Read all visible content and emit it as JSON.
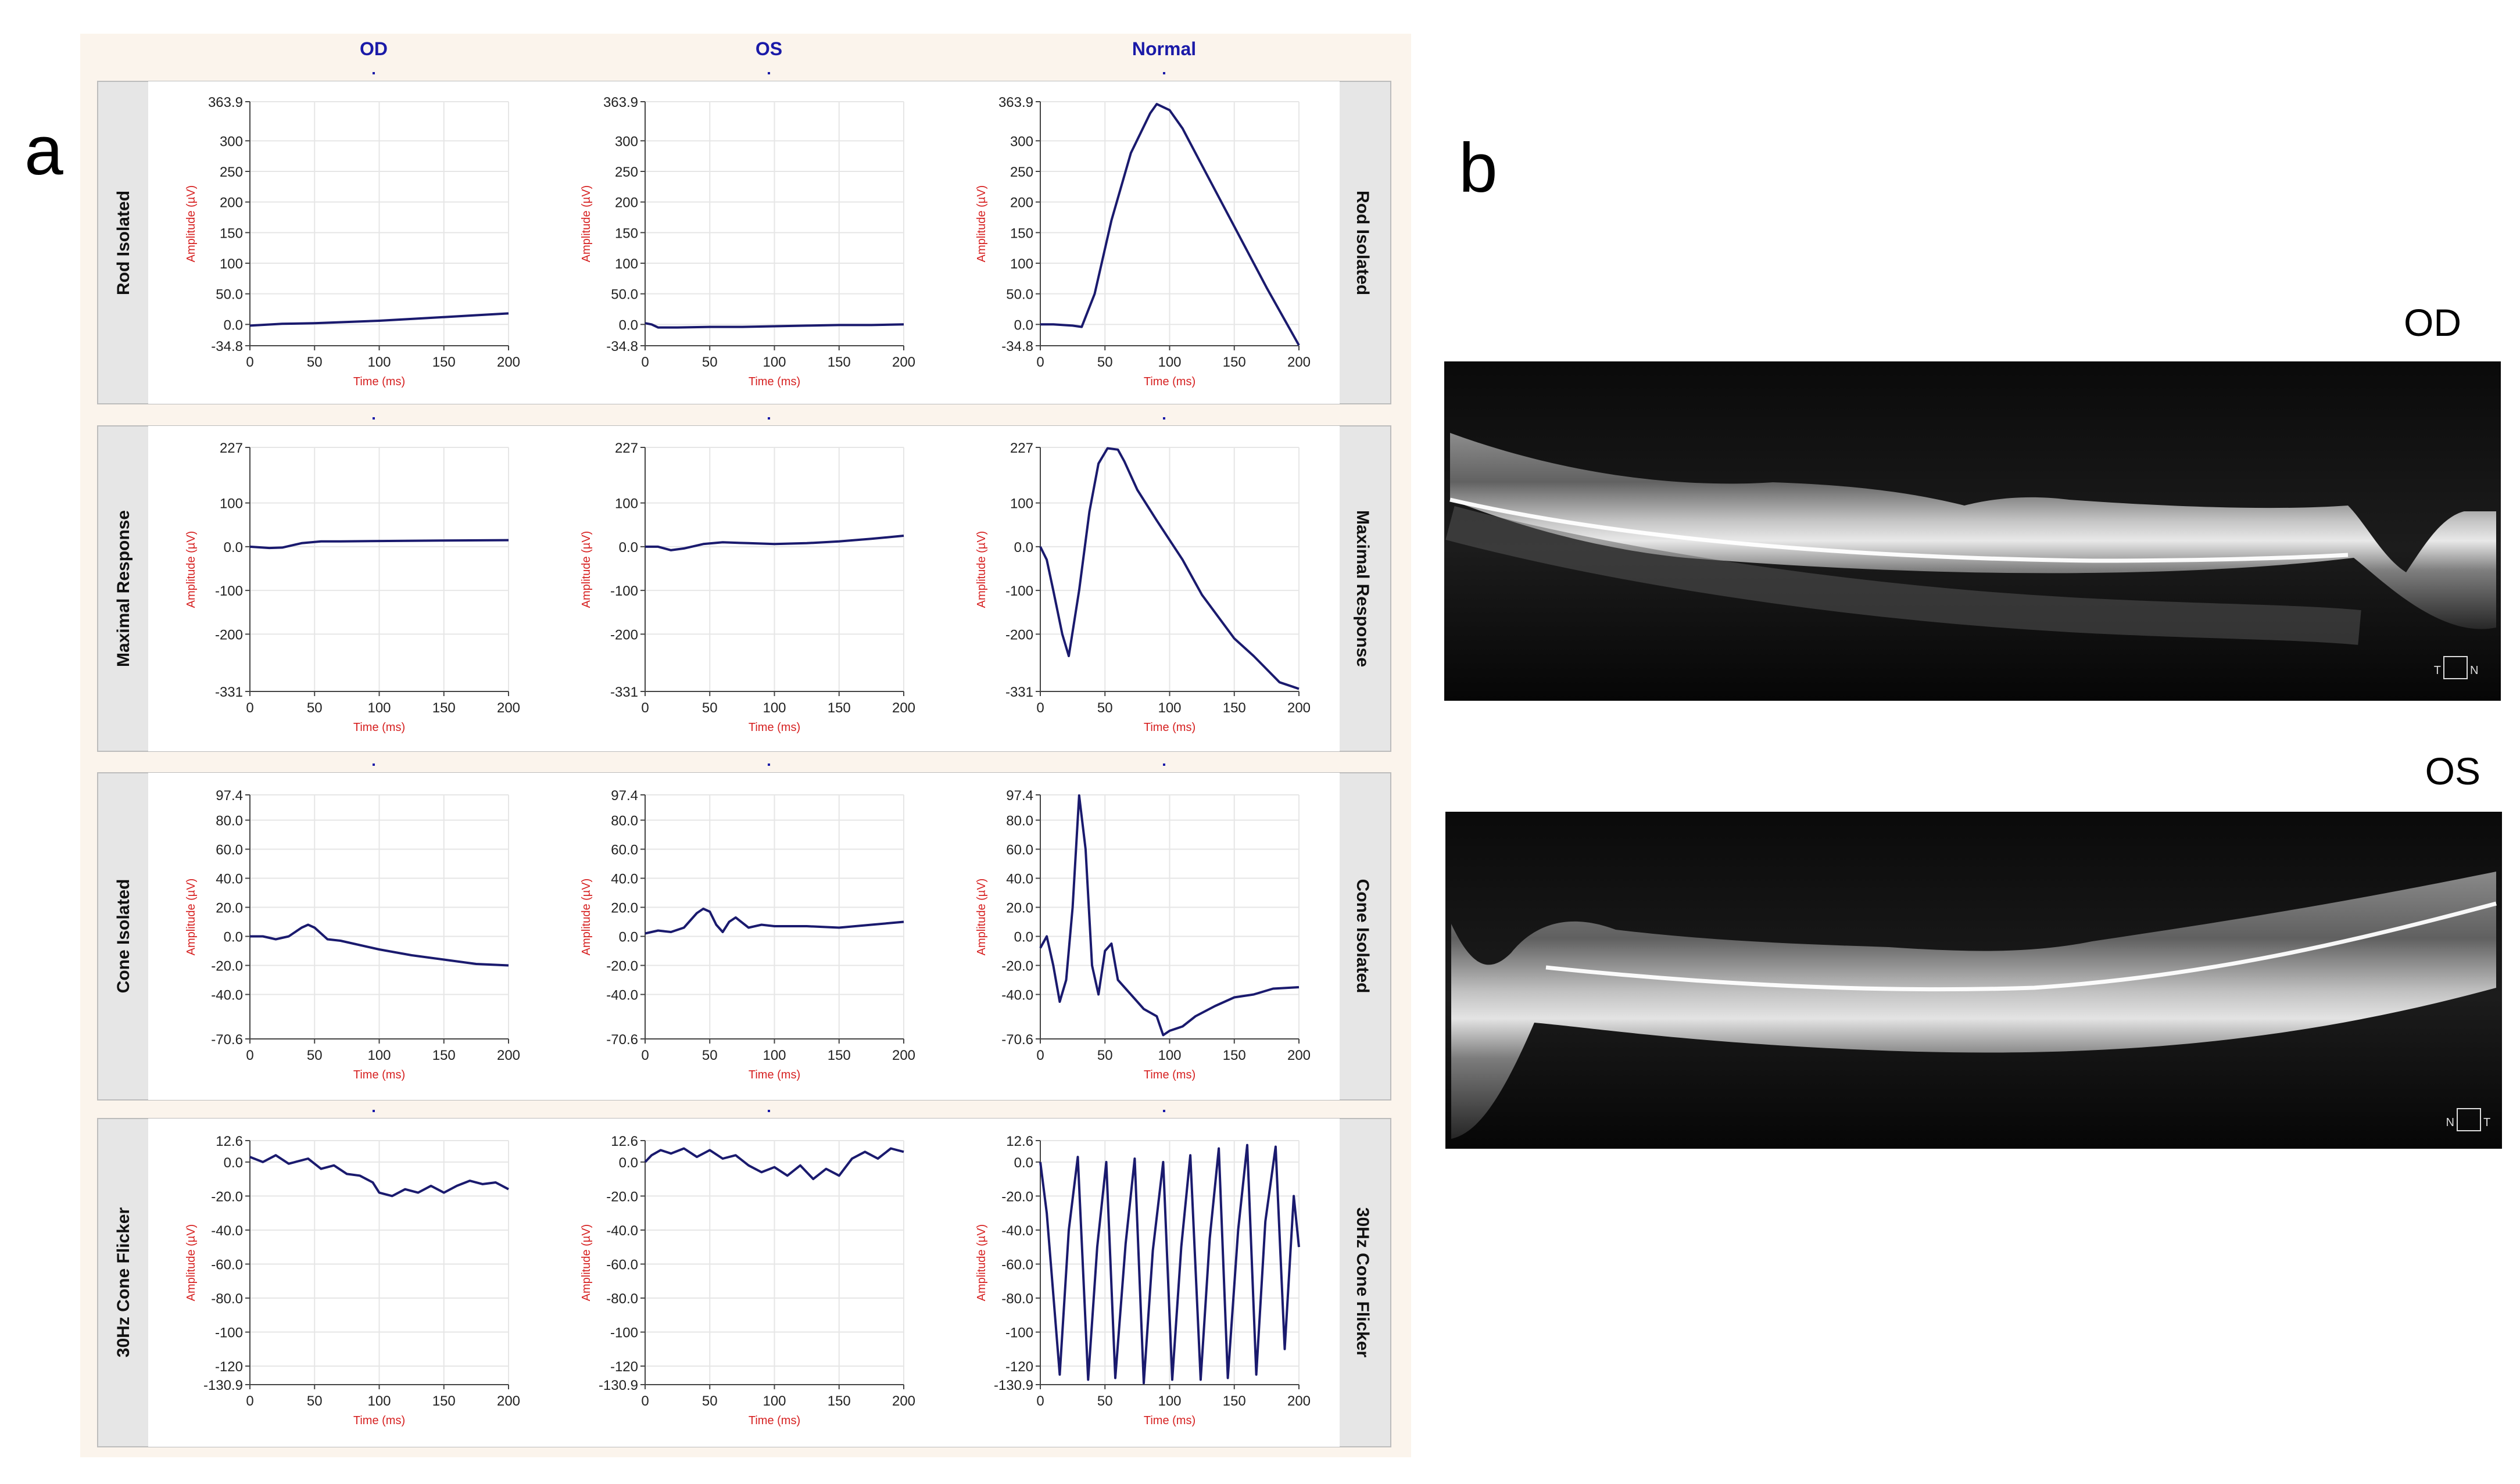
{
  "figure": {
    "panel_a_label": "a",
    "panel_b_label": "b",
    "columns": [
      "OD",
      "OS",
      "Normal"
    ],
    "oct_labels": [
      "OD",
      "OS"
    ],
    "oct_orientation": [
      [
        "T",
        "N"
      ],
      [
        "N",
        "T"
      ]
    ]
  },
  "colors": {
    "panel_bg": "#fbf4ec",
    "row_bg": "#e6e6e6",
    "plot_bg": "#ffffff",
    "trace": "#1a1a6e",
    "axis_label": "#d62020",
    "column_title": "#1a1aa8",
    "grid": "#e6e6e6"
  },
  "chart_data": [
    {
      "type": "line",
      "row": "Rod Isolated",
      "column": "OD",
      "xlabel": "Time (ms)",
      "ylabel": "Amplitude (µV)",
      "xlim": [
        0,
        200
      ],
      "ylim": [
        -34.8,
        363.9
      ],
      "xticks": [
        0,
        50,
        100,
        150,
        200
      ],
      "yticks": [
        -34.8,
        0.0,
        50.0,
        100.0,
        150.0,
        200.0,
        250.0,
        300.0,
        363.9
      ],
      "series": [
        {
          "x": [
            0,
            25,
            50,
            75,
            100,
            125,
            150,
            175,
            200
          ],
          "y": [
            -2,
            1,
            2,
            4,
            6,
            9,
            12,
            15,
            18
          ]
        }
      ]
    },
    {
      "type": "line",
      "row": "Rod Isolated",
      "column": "OS",
      "xlabel": "Time (ms)",
      "ylabel": "Amplitude (µV)",
      "xlim": [
        0,
        200
      ],
      "ylim": [
        -34.8,
        363.9
      ],
      "xticks": [
        0,
        50,
        100,
        150,
        200
      ],
      "yticks": [
        -34.8,
        0.0,
        50.0,
        100.0,
        150.0,
        200.0,
        250.0,
        300.0,
        363.9
      ],
      "series": [
        {
          "x": [
            0,
            5,
            10,
            25,
            50,
            75,
            100,
            125,
            150,
            175,
            200
          ],
          "y": [
            2,
            0,
            -5,
            -5,
            -4,
            -4,
            -3,
            -2,
            -1,
            -1,
            0
          ]
        }
      ]
    },
    {
      "type": "line",
      "row": "Rod Isolated",
      "column": "Normal",
      "xlabel": "Time (ms)",
      "ylabel": "Amplitude (µV)",
      "xlim": [
        0,
        200
      ],
      "ylim": [
        -34.8,
        363.9
      ],
      "xticks": [
        0,
        50,
        100,
        150,
        200
      ],
      "yticks": [
        -34.8,
        0.0,
        50.0,
        100.0,
        150.0,
        200.0,
        250.0,
        300.0,
        363.9
      ],
      "series": [
        {
          "x": [
            0,
            10,
            25,
            32,
            42,
            55,
            70,
            85,
            90,
            100,
            110,
            125,
            150,
            175,
            200
          ],
          "y": [
            0,
            0,
            -2,
            -4,
            50,
            170,
            280,
            345,
            360,
            350,
            320,
            260,
            160,
            60,
            -34
          ]
        }
      ]
    },
    {
      "type": "line",
      "row": "Maximal Response",
      "column": "OD",
      "xlabel": "Time (ms)",
      "ylabel": "Amplitude (µV)",
      "xlim": [
        0,
        200
      ],
      "ylim": [
        -331,
        227
      ],
      "xticks": [
        0,
        50,
        100,
        150,
        200
      ],
      "yticks": [
        -331,
        -200,
        -100,
        0,
        100,
        227
      ],
      "series": [
        {
          "x": [
            0,
            15,
            25,
            40,
            55,
            70,
            100,
            150,
            200
          ],
          "y": [
            0,
            -3,
            -2,
            8,
            12,
            12,
            13,
            14,
            15
          ]
        }
      ]
    },
    {
      "type": "line",
      "row": "Maximal Response",
      "column": "OS",
      "xlabel": "Time (ms)",
      "ylabel": "Amplitude (µV)",
      "xlim": [
        0,
        200
      ],
      "ylim": [
        -331,
        227
      ],
      "xticks": [
        0,
        50,
        100,
        150,
        200
      ],
      "yticks": [
        -331,
        -200,
        -100,
        0,
        100,
        227
      ],
      "series": [
        {
          "x": [
            0,
            10,
            20,
            30,
            45,
            60,
            80,
            100,
            125,
            150,
            175,
            200
          ],
          "y": [
            0,
            0,
            -8,
            -4,
            6,
            10,
            8,
            6,
            8,
            12,
            18,
            25
          ]
        }
      ]
    },
    {
      "type": "line",
      "row": "Maximal Response",
      "column": "Normal",
      "xlabel": "Time (ms)",
      "ylabel": "Amplitude (µV)",
      "xlim": [
        0,
        200
      ],
      "ylim": [
        -331,
        227
      ],
      "xticks": [
        0,
        50,
        100,
        150,
        200
      ],
      "yticks": [
        -331,
        -200,
        -100,
        0,
        100,
        227
      ],
      "series": [
        {
          "x": [
            0,
            5,
            10,
            17,
            22,
            30,
            38,
            45,
            52,
            60,
            65,
            75,
            90,
            110,
            125,
            140,
            150,
            165,
            175,
            185,
            195,
            200
          ],
          "y": [
            0,
            -30,
            -100,
            -200,
            -250,
            -100,
            80,
            190,
            225,
            222,
            195,
            130,
            60,
            -30,
            -110,
            -170,
            -210,
            -250,
            -280,
            -310,
            -320,
            -325
          ]
        }
      ]
    },
    {
      "type": "line",
      "row": "Cone Isolated",
      "column": "OD",
      "xlabel": "Time (ms)",
      "ylabel": "Amplitude (µV)",
      "xlim": [
        0,
        200
      ],
      "ylim": [
        -70.6,
        97.4
      ],
      "xticks": [
        0,
        50,
        100,
        150,
        200
      ],
      "yticks": [
        -70.6,
        -40.0,
        -20.0,
        0.0,
        20.0,
        40.0,
        60.0,
        80.0,
        97.4
      ],
      "series": [
        {
          "x": [
            0,
            10,
            20,
            30,
            40,
            45,
            50,
            55,
            60,
            70,
            80,
            100,
            125,
            150,
            175,
            200
          ],
          "y": [
            0,
            0,
            -2,
            0,
            6,
            8,
            6,
            2,
            -2,
            -3,
            -5,
            -9,
            -13,
            -16,
            -19,
            -20
          ]
        }
      ]
    },
    {
      "type": "line",
      "row": "Cone Isolated",
      "column": "OS",
      "xlabel": "Time (ms)",
      "ylabel": "Amplitude (µV)",
      "xlim": [
        0,
        200
      ],
      "ylim": [
        -70.6,
        97.4
      ],
      "xticks": [
        0,
        50,
        100,
        150,
        200
      ],
      "yticks": [
        -70.6,
        -40.0,
        -20.0,
        0.0,
        20.0,
        40.0,
        60.0,
        80.0,
        97.4
      ],
      "series": [
        {
          "x": [
            0,
            10,
            20,
            30,
            40,
            45,
            50,
            55,
            60,
            65,
            70,
            80,
            90,
            100,
            125,
            150,
            175,
            200
          ],
          "y": [
            2,
            4,
            3,
            6,
            16,
            19,
            17,
            8,
            3,
            10,
            13,
            6,
            8,
            7,
            7,
            6,
            8,
            10
          ]
        }
      ]
    },
    {
      "type": "line",
      "row": "Cone Isolated",
      "column": "Normal",
      "xlabel": "Time (ms)",
      "ylabel": "Amplitude (µV)",
      "xlim": [
        0,
        200
      ],
      "ylim": [
        -70.6,
        97.4
      ],
      "xticks": [
        0,
        50,
        100,
        150,
        200
      ],
      "yticks": [
        -70.6,
        -40.0,
        -20.0,
        0.0,
        20.0,
        40.0,
        60.0,
        80.0,
        97.4
      ],
      "series": [
        {
          "x": [
            0,
            5,
            10,
            15,
            20,
            25,
            30,
            35,
            40,
            45,
            50,
            55,
            60,
            70,
            80,
            90,
            95,
            100,
            110,
            120,
            135,
            150,
            165,
            180,
            200
          ],
          "y": [
            -8,
            0,
            -20,
            -45,
            -30,
            20,
            97,
            60,
            -20,
            -40,
            -10,
            -5,
            -30,
            -40,
            -50,
            -55,
            -68,
            -65,
            -62,
            -55,
            -48,
            -42,
            -40,
            -36,
            -35
          ]
        }
      ]
    },
    {
      "type": "line",
      "row": "30Hz Cone Flicker",
      "column": "OD",
      "xlabel": "Time (ms)",
      "ylabel": "Amplitude (µV)",
      "xlim": [
        0,
        200
      ],
      "ylim": [
        -130.9,
        12.6
      ],
      "xticks": [
        0,
        50,
        100,
        150,
        200
      ],
      "yticks": [
        -130.9,
        -120.0,
        -100.0,
        -80.0,
        -60.0,
        -40.0,
        -20.0,
        0.0,
        12.6
      ],
      "series": [
        {
          "x": [
            0,
            10,
            20,
            30,
            45,
            55,
            65,
            75,
            85,
            95,
            100,
            110,
            120,
            130,
            140,
            150,
            160,
            170,
            180,
            190,
            200
          ],
          "y": [
            3,
            0,
            4,
            -1,
            2,
            -4,
            -2,
            -7,
            -8,
            -12,
            -18,
            -20,
            -16,
            -18,
            -14,
            -18,
            -14,
            -11,
            -13,
            -12,
            -16
          ]
        }
      ]
    },
    {
      "type": "line",
      "row": "30Hz Cone Flicker",
      "column": "OS",
      "xlabel": "Time (ms)",
      "ylabel": "Amplitude (µV)",
      "xlim": [
        0,
        200
      ],
      "ylim": [
        -130.9,
        12.6
      ],
      "xticks": [
        0,
        50,
        100,
        150,
        200
      ],
      "yticks": [
        -130.9,
        -120.0,
        -100.0,
        -80.0,
        -60.0,
        -40.0,
        -20.0,
        0.0,
        12.6
      ],
      "series": [
        {
          "x": [
            0,
            5,
            12,
            20,
            30,
            40,
            50,
            60,
            70,
            80,
            90,
            100,
            110,
            120,
            130,
            140,
            150,
            160,
            170,
            180,
            190,
            200
          ],
          "y": [
            0,
            4,
            7,
            5,
            8,
            3,
            7,
            2,
            4,
            -2,
            -6,
            -3,
            -8,
            -2,
            -10,
            -4,
            -8,
            2,
            6,
            2,
            8,
            6
          ]
        }
      ]
    },
    {
      "type": "line",
      "row": "30Hz Cone Flicker",
      "column": "Normal",
      "xlabel": "Time (ms)",
      "ylabel": "Amplitude (µV)",
      "xlim": [
        0,
        200
      ],
      "ylim": [
        -130.9,
        12.6
      ],
      "xticks": [
        0,
        50,
        100,
        150,
        200
      ],
      "yticks": [
        -130.9,
        -120.0,
        -100.0,
        -80.0,
        -60.0,
        -40.0,
        -20.0,
        0.0,
        12.6
      ],
      "series": [
        {
          "x": [
            0,
            5,
            15,
            22,
            29,
            37,
            44,
            51,
            58,
            66,
            73,
            80,
            87,
            95,
            102,
            109,
            116,
            124,
            131,
            138,
            145,
            153,
            160,
            167,
            174,
            182,
            189,
            196,
            200
          ],
          "y": [
            0,
            -30,
            -125,
            -40,
            3,
            -128,
            -50,
            0,
            -127,
            -48,
            2,
            -130,
            -52,
            0,
            -128,
            -50,
            4,
            -128,
            -45,
            8,
            -127,
            -40,
            10,
            -125,
            -35,
            9,
            -110,
            -20,
            -50
          ]
        }
      ]
    }
  ]
}
